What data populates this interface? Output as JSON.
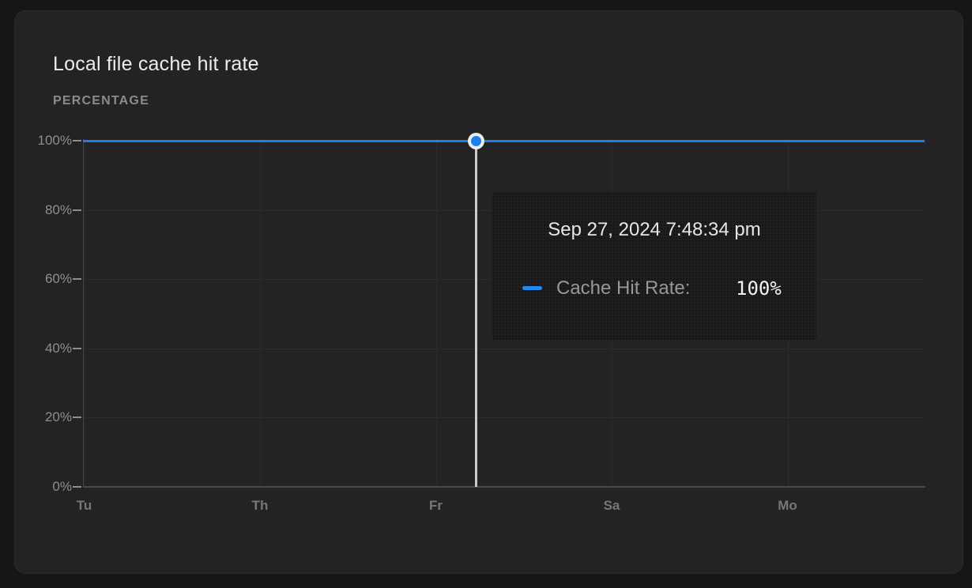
{
  "card": {
    "title": "Local file cache hit rate",
    "units_label": "PERCENTAGE"
  },
  "chart_data": {
    "type": "line",
    "title": "Local file cache hit rate",
    "ylabel": "PERCENTAGE",
    "x_tick_labels": [
      "Tu",
      "Th",
      "Fr",
      "Sa",
      "Mo"
    ],
    "y_tick_labels": [
      "100%",
      "80%",
      "60%",
      "40%",
      "20%",
      "0%"
    ],
    "ylim": [
      0,
      100
    ],
    "grid": true,
    "legend_position": "tooltip",
    "series": [
      {
        "name": "Cache Hit Rate",
        "color": "#1d80e8",
        "values": [
          100,
          100,
          100,
          100,
          100
        ]
      }
    ],
    "hovered_point": {
      "timestamp": "Sep 27, 2024 7:48:34 pm",
      "series": "Cache Hit Rate",
      "value_pct": 100
    }
  },
  "tooltip": {
    "timestamp": "Sep 27, 2024 7:48:34 pm",
    "series_label": "Cache Hit Rate:",
    "value": "100%"
  },
  "colors": {
    "accent_blue": "#1d80e8",
    "card_bg": "#232325",
    "page_bg": "#161617"
  }
}
